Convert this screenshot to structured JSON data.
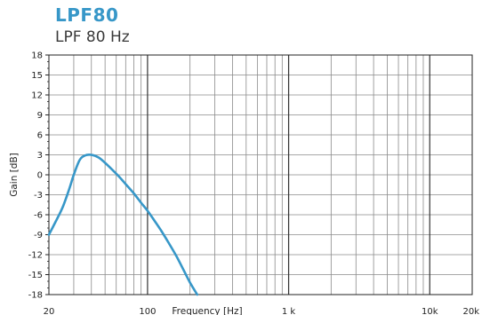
{
  "header": {
    "title": "LPF80",
    "subtitle": "LPF 80 Hz"
  },
  "colors": {
    "title": "#3797c8",
    "curve": "#3797c8",
    "grid": "#8a8a8a",
    "axis": "#222222"
  },
  "chart_data": {
    "type": "line",
    "title": "LPF80",
    "subtitle": "LPF 80 Hz",
    "xlabel": "Frequency [Hz]",
    "ylabel": "Gain [dB]",
    "x_scale": "log",
    "xlim": [
      20,
      20000
    ],
    "ylim": [
      -18,
      18
    ],
    "grid": true,
    "x_ticks": [
      {
        "value": 20,
        "label": "20"
      },
      {
        "value": 100,
        "label": "100"
      },
      {
        "value": 1000,
        "label": "1 k"
      },
      {
        "value": 10000,
        "label": "10k"
      },
      {
        "value": 20000,
        "label": "20k"
      }
    ],
    "y_ticks": [
      {
        "value": 18,
        "label": "18"
      },
      {
        "value": 15,
        "label": "15"
      },
      {
        "value": 12,
        "label": "12"
      },
      {
        "value": 9,
        "label": "9"
      },
      {
        "value": 6,
        "label": "6"
      },
      {
        "value": 3,
        "label": "3"
      },
      {
        "value": 0,
        "label": "0"
      },
      {
        "value": -3,
        "label": "-3"
      },
      {
        "value": -6,
        "label": "-6"
      },
      {
        "value": -9,
        "label": "-9"
      },
      {
        "value": -12,
        "label": "-12"
      },
      {
        "value": -15,
        "label": "-15"
      },
      {
        "value": -18,
        "label": "-18"
      }
    ],
    "series": [
      {
        "x": [
          20,
          22,
          25,
          28,
          30,
          33,
          36,
          40,
          45,
          50,
          56,
          63,
          70,
          80,
          90,
          100,
          112,
          125,
          140,
          160,
          180,
          200,
          225
        ],
        "y": [
          -9.0,
          -7.3,
          -4.9,
          -2.0,
          0.0,
          2.2,
          2.9,
          3.0,
          2.6,
          1.8,
          0.8,
          -0.3,
          -1.4,
          -2.8,
          -4.2,
          -5.4,
          -6.9,
          -8.4,
          -10.1,
          -12.2,
          -14.3,
          -16.2,
          -18.0
        ]
      }
    ]
  }
}
